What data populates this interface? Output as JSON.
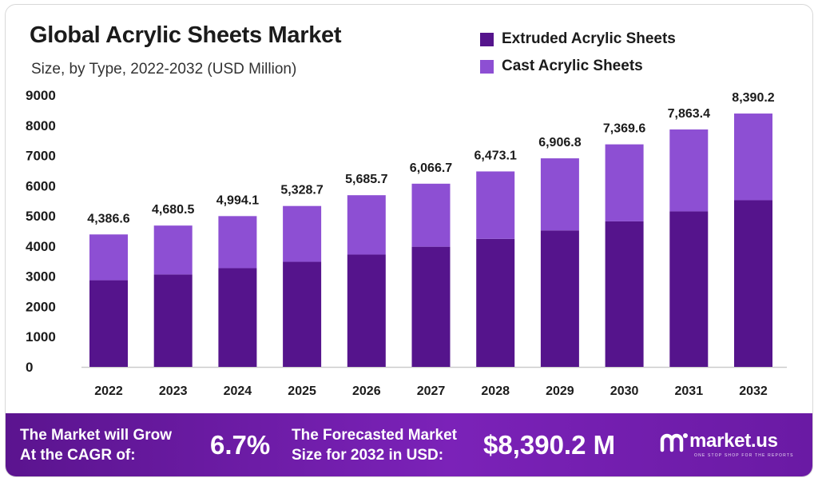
{
  "title": "Global Acrylic Sheets Market",
  "subtitle": "Size, by Type, 2022-2032 (USD Million)",
  "colors": {
    "extruded": "#55148c",
    "cast": "#8d4fd3",
    "axis": "#cccccc",
    "text": "#1b1b1b"
  },
  "chart_data": {
    "type": "bar",
    "stacked": true,
    "categories": [
      "2022",
      "2023",
      "2024",
      "2025",
      "2026",
      "2027",
      "2028",
      "2029",
      "2030",
      "2031",
      "2032"
    ],
    "series": [
      {
        "name": "Extruded Acrylic Sheets",
        "values": [
          2870,
          3060,
          3270,
          3480,
          3720,
          3980,
          4240,
          4520,
          4820,
          5150,
          5520
        ]
      },
      {
        "name": "Cast Acrylic Sheets",
        "values": [
          1516.6,
          1620.5,
          1724.1,
          1848.7,
          1965.7,
          2086.7,
          2233.1,
          2386.8,
          2549.6,
          2713.4,
          2870.2
        ]
      }
    ],
    "totals": [
      "4,386.6",
      "4,680.5",
      "4,994.1",
      "5,328.7",
      "5,685.7",
      "6,066.7",
      "6,473.1",
      "6,906.8",
      "7,369.6",
      "7,863.4",
      "8,390.2"
    ],
    "yticks": [
      "0",
      "1000",
      "2000",
      "3000",
      "4000",
      "5000",
      "6000",
      "7000",
      "8000",
      "9000"
    ],
    "ylim": [
      0,
      9000
    ],
    "grid": false,
    "legend": "top-right"
  },
  "footer": {
    "cagr_line1": "The Market will Grow",
    "cagr_line2": "At the CAGR of:",
    "cagr_value": "6.7%",
    "forecast_line1": "The Forecasted Market",
    "forecast_line2": "Size for 2032 in USD:",
    "forecast_value": "$8,390.2 M",
    "brand": "market.us",
    "brand_tagline": "ONE STOP SHOP FOR THE REPORTS"
  }
}
